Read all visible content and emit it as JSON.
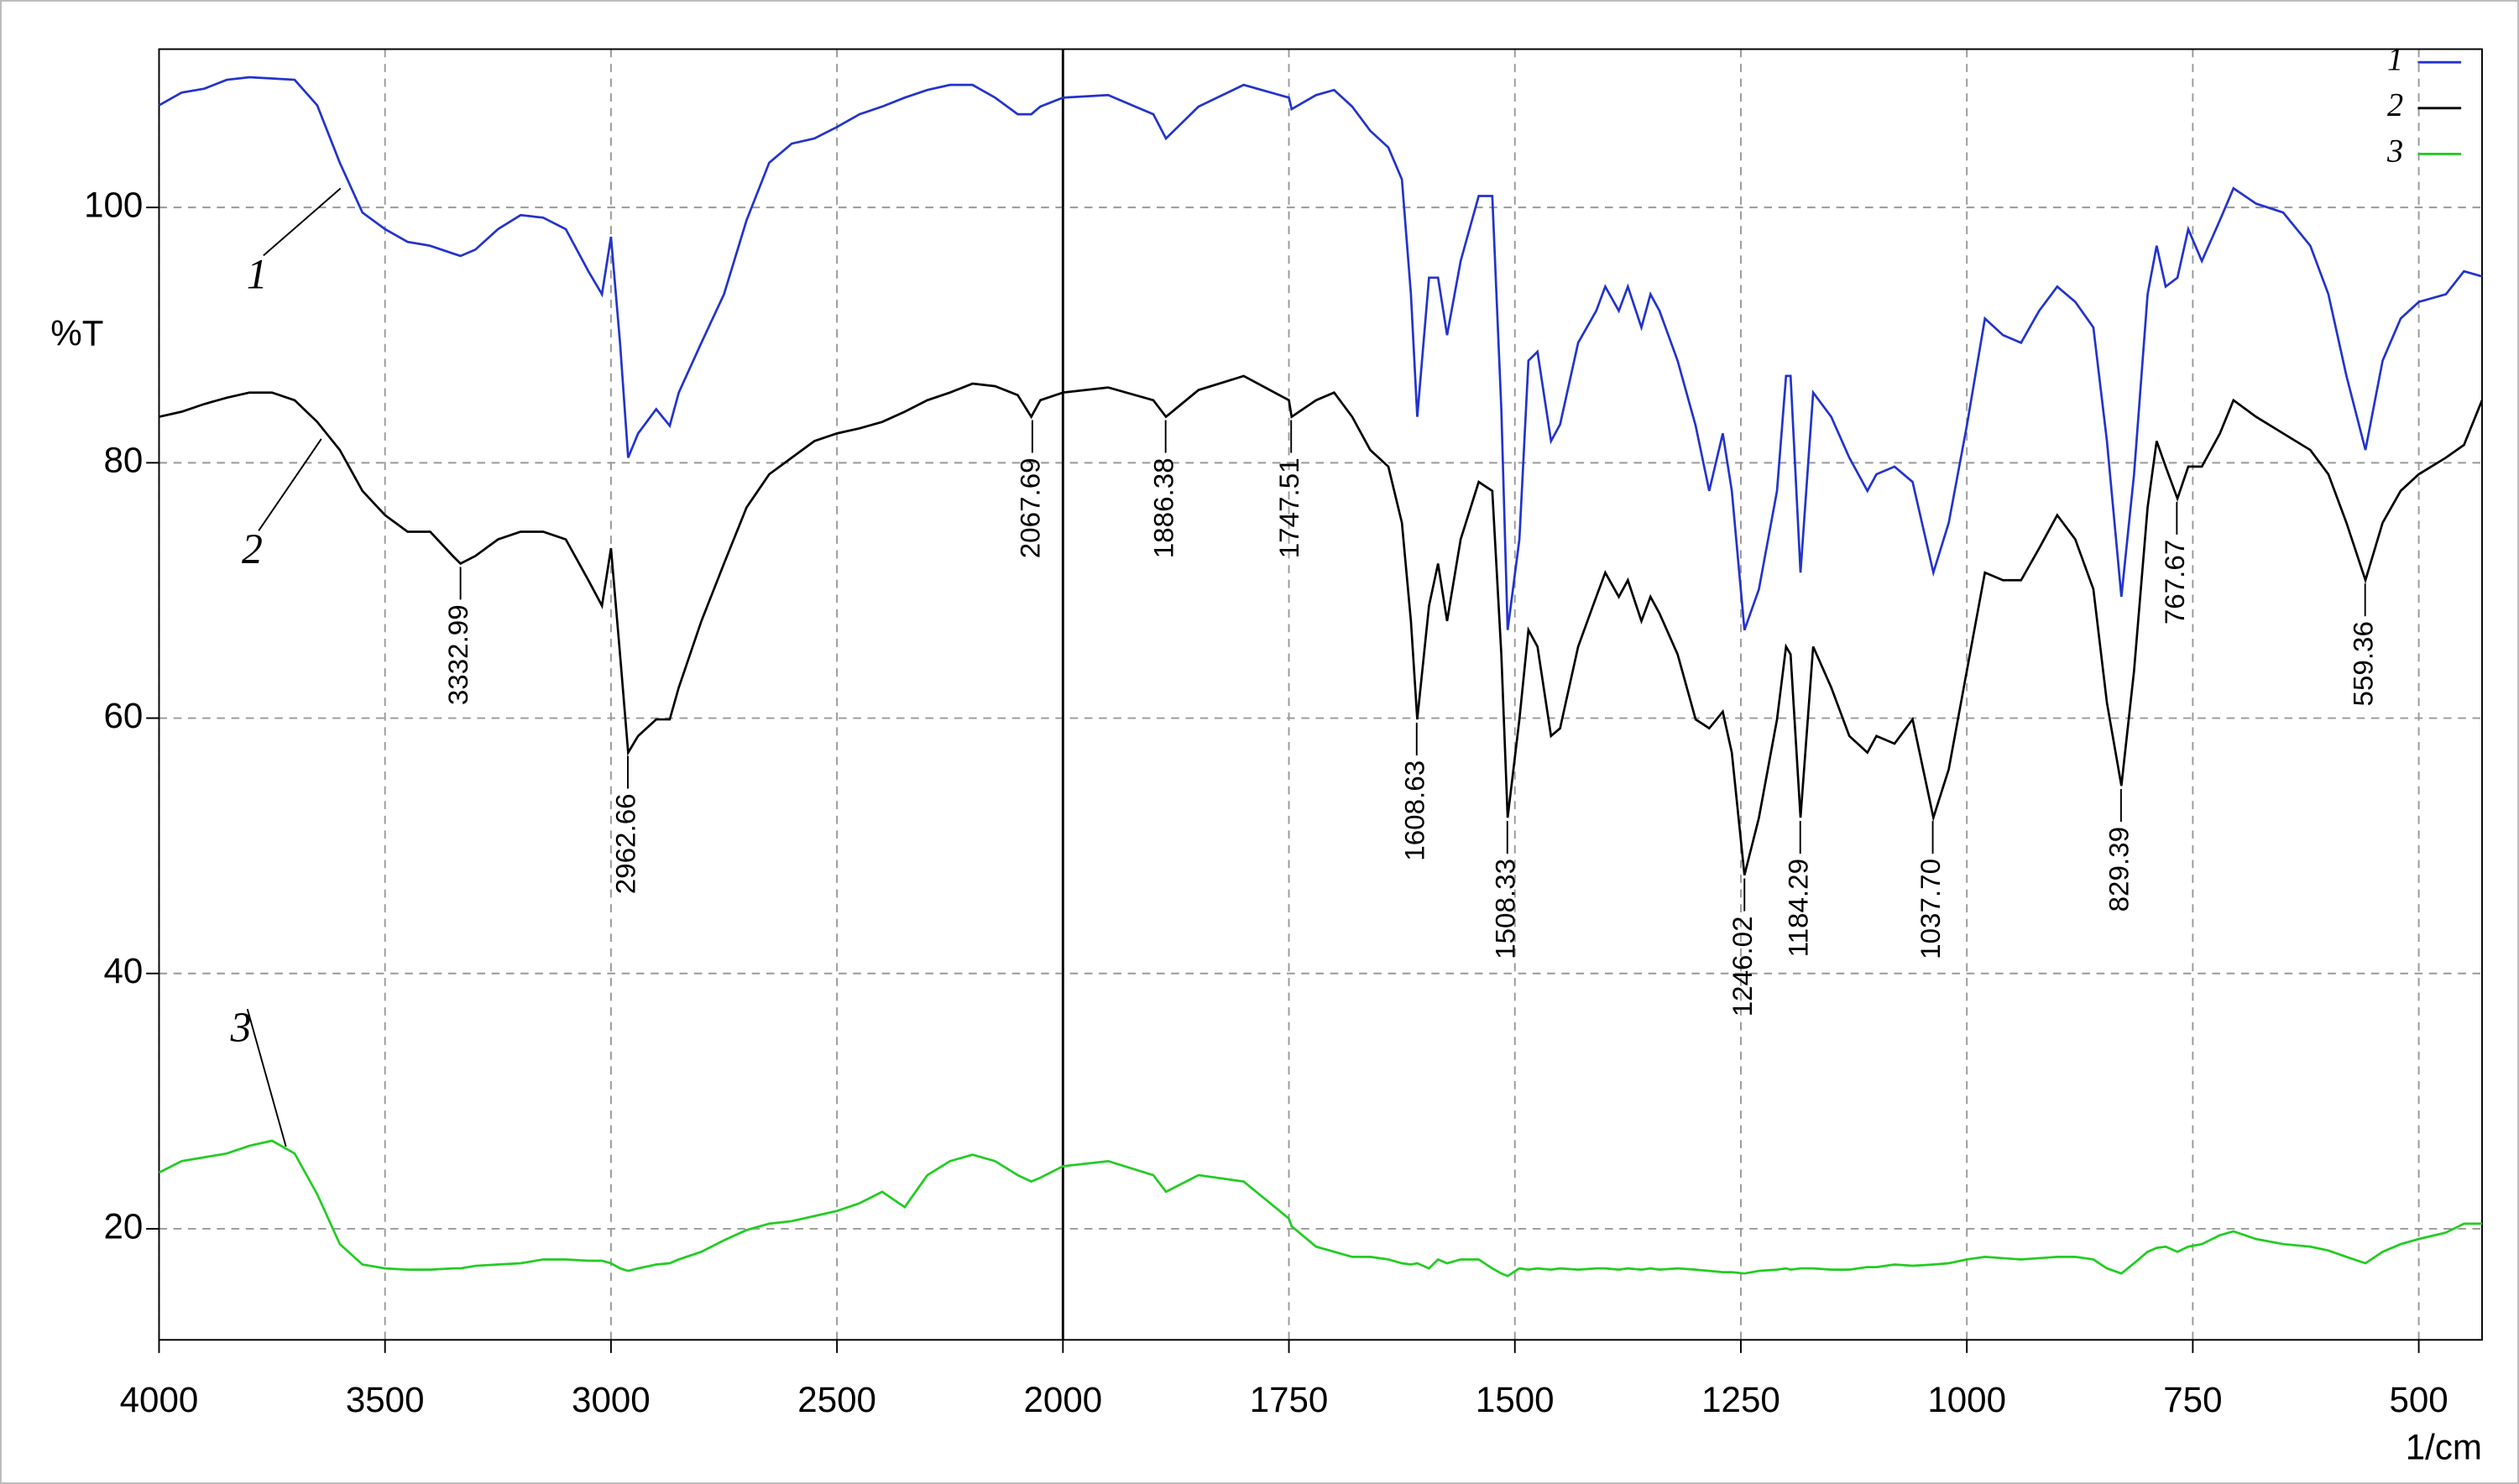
{
  "chart_data": {
    "type": "line",
    "y_label": "%T",
    "x_label": "1/cm",
    "xlim": [
      4000,
      430
    ],
    "xbreak": 2000,
    "xbreak_zoom": 2,
    "xticks": [
      4000,
      3500,
      3000,
      2500,
      2000,
      1750,
      1500,
      1250,
      1000,
      750,
      500
    ],
    "ylim": [
      11.3,
      112.4
    ],
    "yticks": [
      20,
      40,
      60,
      80,
      100
    ],
    "grid": true,
    "legend": "top-right",
    "x": [
      4000,
      3950,
      3900,
      3850,
      3800,
      3750,
      3700,
      3650,
      3600,
      3550,
      3500,
      3450,
      3400,
      3350,
      3333,
      3300,
      3250,
      3200,
      3150,
      3100,
      3050,
      3020,
      3000,
      2980,
      2962,
      2940,
      2900,
      2870,
      2850,
      2800,
      2750,
      2700,
      2650,
      2600,
      2550,
      2500,
      2450,
      2400,
      2350,
      2300,
      2250,
      2200,
      2150,
      2100,
      2070,
      2050,
      2000,
      1950,
      1900,
      1886,
      1850,
      1800,
      1750,
      1747,
      1720,
      1700,
      1680,
      1660,
      1640,
      1625,
      1615,
      1608,
      1595,
      1585,
      1575,
      1560,
      1540,
      1525,
      1515,
      1508,
      1495,
      1485,
      1475,
      1460,
      1450,
      1430,
      1410,
      1400,
      1385,
      1375,
      1360,
      1350,
      1340,
      1320,
      1300,
      1285,
      1270,
      1260,
      1246,
      1230,
      1210,
      1200,
      1195,
      1184,
      1170,
      1150,
      1130,
      1110,
      1100,
      1080,
      1060,
      1037,
      1020,
      1000,
      980,
      960,
      940,
      920,
      900,
      880,
      860,
      845,
      829,
      815,
      800,
      790,
      780,
      767,
      755,
      740,
      720,
      705,
      680,
      650,
      620,
      600,
      580,
      559,
      540,
      520,
      500,
      470,
      450,
      430
    ],
    "series": [
      {
        "name": "1",
        "color": "#2233cc",
        "values": [
          108,
          109,
          109.3,
          110,
          110.2,
          110.1,
          110,
          108,
          103.5,
          99.6,
          98.3,
          97.3,
          97,
          96.4,
          96.2,
          96.7,
          98.3,
          99.4,
          99.2,
          98.3,
          95,
          93.2,
          97.7,
          89.4,
          80.4,
          82.3,
          84.2,
          82.9,
          85.5,
          89.4,
          93.2,
          99,
          103.5,
          105,
          105.4,
          106.3,
          107.3,
          107.9,
          108.6,
          109.2,
          109.6,
          109.6,
          108.6,
          107.3,
          107.3,
          107.9,
          108.6,
          108.8,
          107.3,
          105.4,
          107.9,
          109.6,
          108.6,
          107.7,
          108.8,
          109.2,
          107.9,
          106,
          104.7,
          102.2,
          93.2,
          83.6,
          94.5,
          94.5,
          90,
          95.8,
          100.9,
          100.9,
          84.2,
          66.9,
          74,
          88,
          88.7,
          81.7,
          83,
          89.4,
          91.9,
          93.8,
          91.9,
          93.8,
          90.6,
          93.2,
          91.9,
          88,
          82.9,
          77.8,
          82.3,
          77.8,
          66.9,
          70.1,
          77.8,
          86.8,
          86.8,
          71.4,
          85.5,
          83.6,
          80.4,
          77.8,
          79.1,
          79.7,
          78.5,
          71.4,
          75.3,
          82.9,
          91.3,
          90,
          89.4,
          91.9,
          93.8,
          92.6,
          90.6,
          81.7,
          69.5,
          79.1,
          93.2,
          97,
          93.8,
          94.5,
          98.3,
          95.8,
          99,
          101.5,
          100.3,
          99.6,
          97,
          93.2,
          86.8,
          81,
          88,
          91.3,
          92.6,
          93.2,
          95,
          94.6
        ]
      },
      {
        "name": "2",
        "color": "#000000",
        "values": [
          83.6,
          84,
          84.6,
          85.1,
          85.5,
          85.5,
          84.9,
          83.2,
          81,
          77.8,
          75.9,
          74.6,
          74.6,
          72.7,
          72.1,
          72.7,
          74,
          74.6,
          74.6,
          74,
          70.8,
          68.8,
          73.3,
          65,
          57.3,
          58.6,
          59.9,
          59.9,
          62.4,
          67.6,
          72.1,
          76.5,
          79.1,
          80.4,
          81.7,
          82.3,
          82.7,
          83.2,
          84,
          84.9,
          85.5,
          86.2,
          86,
          85.3,
          83.6,
          84.9,
          85.5,
          85.9,
          84.9,
          83.6,
          85.7,
          86.8,
          84.9,
          83.6,
          84.9,
          85.5,
          83.6,
          81,
          79.7,
          75.3,
          67.6,
          59.9,
          68.8,
          72.1,
          67.6,
          74,
          78.5,
          77.8,
          65,
          52.2,
          59.9,
          66.9,
          65.6,
          58.6,
          59.2,
          65.6,
          69.5,
          71.4,
          69.5,
          70.8,
          67.6,
          69.5,
          68.2,
          65,
          59.9,
          59.2,
          60.5,
          57.3,
          47.7,
          52.2,
          59.9,
          65.6,
          65,
          52.2,
          65.6,
          62.4,
          58.6,
          57.3,
          58.6,
          58,
          59.9,
          52.2,
          56,
          63.7,
          71.4,
          70.8,
          70.8,
          73.3,
          75.9,
          74,
          70.1,
          61.2,
          54.7,
          63.7,
          76.5,
          81.7,
          79.7,
          77.2,
          79.7,
          79.7,
          82.3,
          84.9,
          83.6,
          82.3,
          81,
          79.1,
          75.3,
          70.8,
          75.3,
          77.8,
          79.1,
          80.4,
          81.4,
          84.9
        ]
      },
      {
        "name": "3",
        "color": "#22cc22",
        "values": [
          24.4,
          25.3,
          25.6,
          25.9,
          26.5,
          26.9,
          25.9,
          22.7,
          18.8,
          17.2,
          16.9,
          16.8,
          16.8,
          16.9,
          16.9,
          17.1,
          17.2,
          17.3,
          17.6,
          17.6,
          17.5,
          17.5,
          17.3,
          16.9,
          16.7,
          16.9,
          17.2,
          17.3,
          17.6,
          18.2,
          19.1,
          19.9,
          20.4,
          20.6,
          21,
          21.4,
          22,
          22.9,
          21.7,
          24.2,
          25.3,
          25.8,
          25.3,
          24.2,
          23.7,
          24,
          24.9,
          25.3,
          24.2,
          22.9,
          24.2,
          23.7,
          20.8,
          20.2,
          18.6,
          18.2,
          17.8,
          17.8,
          17.6,
          17.3,
          17.2,
          17.3,
          16.9,
          17.6,
          17.3,
          17.6,
          17.6,
          16.9,
          16.5,
          16.3,
          16.9,
          16.8,
          16.9,
          16.8,
          16.9,
          16.8,
          16.9,
          16.9,
          16.8,
          16.9,
          16.8,
          16.9,
          16.8,
          16.9,
          16.8,
          16.7,
          16.6,
          16.6,
          16.5,
          16.7,
          16.8,
          16.9,
          16.8,
          16.9,
          16.9,
          16.8,
          16.8,
          17,
          17,
          17.2,
          17.1,
          17.2,
          17.3,
          17.6,
          17.8,
          17.7,
          17.6,
          17.7,
          17.8,
          17.8,
          17.6,
          16.9,
          16.5,
          17.3,
          18.2,
          18.5,
          18.6,
          18.2,
          18.6,
          18.8,
          19.5,
          19.8,
          19.2,
          18.8,
          18.6,
          18.3,
          17.8,
          17.3,
          18.2,
          18.8,
          19.2,
          19.7,
          20.4,
          20.4
        ]
      }
    ],
    "peak_annotations": {
      "series": 1,
      "x": [
        3332.99,
        2962.66,
        2067.69,
        1886.38,
        1747.51,
        1608.63,
        1508.33,
        1246.02,
        1184.29,
        1037.7,
        829.39,
        767.67,
        559.36
      ],
      "value_labels": [
        "3332.99",
        "2962.66",
        "2067.69",
        "1886.38",
        "1747.51",
        "1608.63",
        "1508.33",
        "1246.02",
        "1184.29",
        "1037.70",
        "829.39",
        "767.67",
        "559.36"
      ],
      "y": [
        72.1,
        57.3,
        83.6,
        83.6,
        83.6,
        59.9,
        52.2,
        47.7,
        52.2,
        52.2,
        54.7,
        77.2,
        70.8
      ]
    }
  }
}
